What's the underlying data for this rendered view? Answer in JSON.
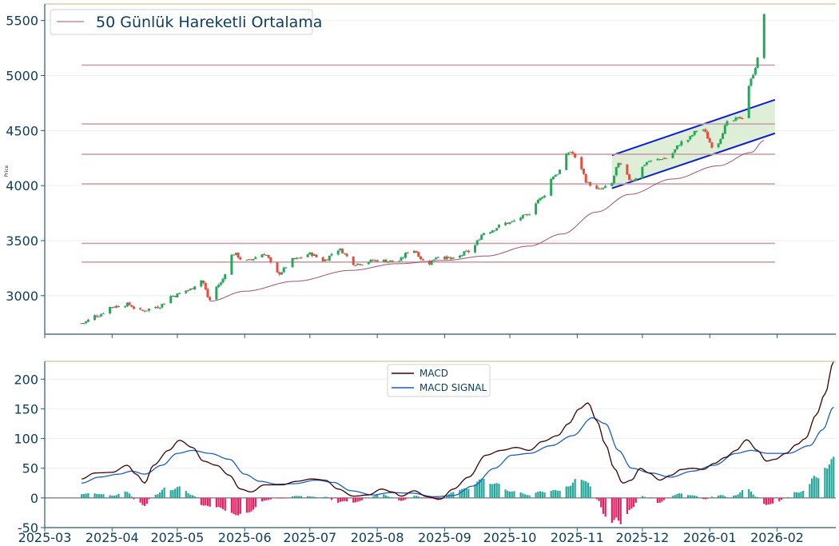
{
  "chart_data": [
    {
      "type": "candlestick",
      "ylabel": "Price",
      "ylim": [
        2650,
        5650
      ],
      "yticks": [
        3000,
        3500,
        4000,
        4500,
        5000,
        5500
      ],
      "legend": {
        "label": "50 Günlük Hareketli Ortalama",
        "placement": "top-left"
      },
      "horizontal_levels": [
        5095,
        4560,
        4285,
        4015,
        3475,
        3305
      ],
      "channel": {
        "start": "2025-11-17",
        "end": "2026-01-31",
        "upper": [
          4275,
          4780
        ],
        "lower": [
          3975,
          4475
        ]
      },
      "price_anchors": [
        [
          "2025-03-18",
          2750
        ],
        [
          "2025-03-25",
          2820
        ],
        [
          "2025-04-01",
          2900
        ],
        [
          "2025-04-08",
          2920
        ],
        [
          "2025-04-14",
          2860
        ],
        [
          "2025-04-22",
          2900
        ],
        [
          "2025-04-29",
          3000
        ],
        [
          "2025-05-06",
          3050
        ],
        [
          "2025-05-12",
          3140
        ],
        [
          "2025-05-16",
          2960
        ],
        [
          "2025-05-20",
          3100
        ],
        [
          "2025-05-27",
          3380
        ],
        [
          "2025-06-01",
          3310
        ],
        [
          "2025-06-10",
          3380
        ],
        [
          "2025-06-16",
          3200
        ],
        [
          "2025-06-24",
          3330
        ],
        [
          "2025-07-01",
          3380
        ],
        [
          "2025-07-07",
          3320
        ],
        [
          "2025-07-14",
          3420
        ],
        [
          "2025-07-22",
          3290
        ],
        [
          "2025-08-01",
          3320
        ],
        [
          "2025-08-10",
          3310
        ],
        [
          "2025-08-17",
          3420
        ],
        [
          "2025-08-24",
          3290
        ],
        [
          "2025-08-29",
          3360
        ],
        [
          "2025-09-05",
          3330
        ],
        [
          "2025-09-12",
          3400
        ],
        [
          "2025-09-20",
          3580
        ],
        [
          "2025-09-30",
          3660
        ],
        [
          "2025-10-08",
          3720
        ],
        [
          "2025-10-15",
          3880
        ],
        [
          "2025-10-22",
          4100
        ],
        [
          "2025-10-29",
          4310
        ],
        [
          "2025-11-02",
          4180
        ],
        [
          "2025-11-06",
          4020
        ],
        [
          "2025-11-10",
          3960
        ],
        [
          "2025-11-16",
          3990
        ],
        [
          "2025-11-20",
          4190
        ],
        [
          "2025-11-26",
          4050
        ],
        [
          "2025-12-04",
          4220
        ],
        [
          "2025-12-12",
          4250
        ],
        [
          "2025-12-20",
          4400
        ],
        [
          "2025-12-28",
          4520
        ],
        [
          "2026-01-03",
          4350
        ],
        [
          "2026-01-10",
          4580
        ],
        [
          "2026-01-16",
          4620
        ],
        [
          "2026-01-20",
          4960
        ],
        [
          "2026-01-22",
          5080
        ],
        [
          "2026-01-26",
          5560
        ]
      ],
      "ma50_anchors": [
        [
          "2025-05-16",
          2950
        ],
        [
          "2025-06-01",
          3040
        ],
        [
          "2025-06-24",
          3130
        ],
        [
          "2025-07-20",
          3230
        ],
        [
          "2025-08-10",
          3290
        ],
        [
          "2025-09-01",
          3320
        ],
        [
          "2025-09-20",
          3360
        ],
        [
          "2025-10-10",
          3450
        ],
        [
          "2025-10-25",
          3560
        ],
        [
          "2025-11-10",
          3760
        ],
        [
          "2025-11-25",
          3920
        ],
        [
          "2025-12-15",
          4060
        ],
        [
          "2026-01-05",
          4180
        ],
        [
          "2026-01-20",
          4300
        ],
        [
          "2026-01-26",
          4410
        ]
      ],
      "colors": {
        "up": "#26a65b",
        "down": "#e74c3c",
        "ma": "#a0526d",
        "levels": "#c9a0a8",
        "channel": "#0a1fd6",
        "channel_fill": "#d9ecd0"
      }
    },
    {
      "type": "line",
      "ylim": [
        -50,
        230
      ],
      "yticks": [
        -50,
        0,
        50,
        100,
        150,
        200
      ],
      "xticks": [
        "2025-03",
        "2025-04",
        "2025-05",
        "2025-06",
        "2025-07",
        "2025-08",
        "2025-09",
        "2025-10",
        "2025-11",
        "2025-12",
        "2026-01",
        "2026-02"
      ],
      "legend": {
        "placement": "top-center"
      },
      "series": [
        {
          "name": "MACD",
          "color": "#3d0000",
          "anchors": [
            [
              "2025-03-18",
              32
            ],
            [
              "2025-03-24",
              42
            ],
            [
              "2025-04-01",
              43
            ],
            [
              "2025-04-08",
              55
            ],
            [
              "2025-04-12",
              40
            ],
            [
              "2025-04-16",
              25
            ],
            [
              "2025-04-20",
              55
            ],
            [
              "2025-04-27",
              80
            ],
            [
              "2025-05-02",
              97
            ],
            [
              "2025-05-08",
              85
            ],
            [
              "2025-05-13",
              62
            ],
            [
              "2025-05-19",
              55
            ],
            [
              "2025-05-25",
              38
            ],
            [
              "2025-05-30",
              15
            ],
            [
              "2025-06-04",
              10
            ],
            [
              "2025-06-10",
              22
            ],
            [
              "2025-06-18",
              22
            ],
            [
              "2025-06-25",
              28
            ],
            [
              "2025-07-02",
              32
            ],
            [
              "2025-07-08",
              30
            ],
            [
              "2025-07-14",
              15
            ],
            [
              "2025-07-21",
              3
            ],
            [
              "2025-07-28",
              5
            ],
            [
              "2025-08-03",
              15
            ],
            [
              "2025-08-08",
              10
            ],
            [
              "2025-08-12",
              3
            ],
            [
              "2025-08-18",
              12
            ],
            [
              "2025-08-24",
              2
            ],
            [
              "2025-08-30",
              -2
            ],
            [
              "2025-09-05",
              15
            ],
            [
              "2025-09-12",
              35
            ],
            [
              "2025-09-20",
              72
            ],
            [
              "2025-09-27",
              80
            ],
            [
              "2025-10-04",
              85
            ],
            [
              "2025-10-10",
              80
            ],
            [
              "2025-10-16",
              95
            ],
            [
              "2025-10-23",
              105
            ],
            [
              "2025-10-28",
              125
            ],
            [
              "2025-11-02",
              150
            ],
            [
              "2025-11-06",
              160
            ],
            [
              "2025-11-10",
              130
            ],
            [
              "2025-11-14",
              90
            ],
            [
              "2025-11-18",
              50
            ],
            [
              "2025-11-22",
              25
            ],
            [
              "2025-11-26",
              30
            ],
            [
              "2025-11-30",
              50
            ],
            [
              "2025-12-04",
              42
            ],
            [
              "2025-12-09",
              30
            ],
            [
              "2025-12-14",
              38
            ],
            [
              "2025-12-19",
              48
            ],
            [
              "2025-12-24",
              50
            ],
            [
              "2025-12-29",
              48
            ],
            [
              "2026-01-03",
              58
            ],
            [
              "2026-01-08",
              68
            ],
            [
              "2026-01-13",
              80
            ],
            [
              "2026-01-18",
              98
            ],
            [
              "2026-01-23",
              80
            ],
            [
              "2026-01-27",
              62
            ],
            [
              "2026-01-31",
              65
            ],
            [
              "2026-02-05",
              75
            ],
            [
              "2026-02-10",
              90
            ],
            [
              "2026-02-14",
              100
            ],
            [
              "2026-02-19",
              140
            ],
            [
              "2026-02-23",
              175
            ],
            [
              "2026-02-27",
              230
            ]
          ]
        },
        {
          "name": "MACD SIGNAL",
          "color": "#1a5fc4",
          "anchors": [
            [
              "2025-03-18",
              25
            ],
            [
              "2025-03-26",
              35
            ],
            [
              "2025-04-04",
              40
            ],
            [
              "2025-04-10",
              45
            ],
            [
              "2025-04-16",
              40
            ],
            [
              "2025-04-24",
              55
            ],
            [
              "2025-05-01",
              75
            ],
            [
              "2025-05-08",
              80
            ],
            [
              "2025-05-16",
              75
            ],
            [
              "2025-05-25",
              65
            ],
            [
              "2025-06-01",
              40
            ],
            [
              "2025-06-08",
              28
            ],
            [
              "2025-06-16",
              23
            ],
            [
              "2025-06-24",
              24
            ],
            [
              "2025-07-04",
              30
            ],
            [
              "2025-07-12",
              26
            ],
            [
              "2025-07-20",
              12
            ],
            [
              "2025-07-30",
              5
            ],
            [
              "2025-08-07",
              9
            ],
            [
              "2025-08-17",
              8
            ],
            [
              "2025-08-27",
              2
            ],
            [
              "2025-09-05",
              4
            ],
            [
              "2025-09-14",
              20
            ],
            [
              "2025-09-24",
              50
            ],
            [
              "2025-10-02",
              72
            ],
            [
              "2025-10-10",
              75
            ],
            [
              "2025-10-20",
              88
            ],
            [
              "2025-10-30",
              105
            ],
            [
              "2025-11-08",
              135
            ],
            [
              "2025-11-14",
              125
            ],
            [
              "2025-11-20",
              80
            ],
            [
              "2025-11-26",
              50
            ],
            [
              "2025-12-05",
              42
            ],
            [
              "2025-12-14",
              35
            ],
            [
              "2025-12-24",
              45
            ],
            [
              "2026-01-03",
              55
            ],
            [
              "2026-01-13",
              75
            ],
            [
              "2026-01-20",
              80
            ],
            [
              "2026-01-28",
              75
            ],
            [
              "2026-02-06",
              75
            ],
            [
              "2026-02-16",
              88
            ],
            [
              "2026-02-22",
              115
            ],
            [
              "2026-02-27",
              153
            ]
          ]
        }
      ],
      "histogram_colors": {
        "positive": "#26a69a",
        "negative": "#e91e63"
      }
    }
  ]
}
